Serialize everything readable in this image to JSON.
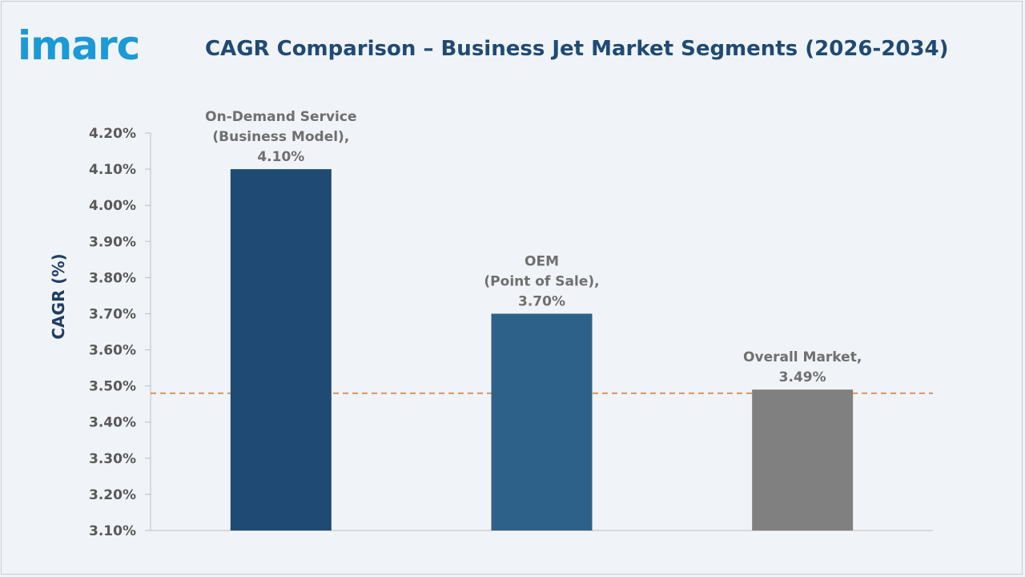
{
  "header": {
    "logo_text": "imarc",
    "title": "CAGR Comparison – Business Jet Market Segments (2026-2034)"
  },
  "colors": {
    "logo": "#1a9ad6",
    "title": "#1f4a73",
    "bar_1": "#1f4a73",
    "bar_2": "#2e6189",
    "bar_3": "#808080",
    "reference_line": "#e07b39"
  },
  "chart_data": {
    "type": "bar",
    "title": "CAGR Comparison – Business Jet Market Segments (2026-2034)",
    "ylabel": "CAGR (%)",
    "xlabel": "",
    "ylim": [
      3.1,
      4.2
    ],
    "yticks": [
      "3.10%",
      "3.20%",
      "3.30%",
      "3.40%",
      "3.50%",
      "3.60%",
      "3.70%",
      "3.80%",
      "3.90%",
      "4.00%",
      "4.10%",
      "4.20%"
    ],
    "categories": [
      "On-Demand Service (Business Model)",
      "OEM (Point of Sale)",
      "Overall Market"
    ],
    "values": [
      4.1,
      3.7,
      3.49
    ],
    "data_labels": [
      [
        "On-Demand Service",
        "(Business Model),",
        "4.10%"
      ],
      [
        "OEM",
        "(Point of Sale),",
        "3.70%"
      ],
      [
        "Overall Market,",
        "3.49%"
      ]
    ],
    "reference_line": {
      "value": 3.48,
      "style": "dashed"
    },
    "grid": false,
    "legend": "none"
  }
}
